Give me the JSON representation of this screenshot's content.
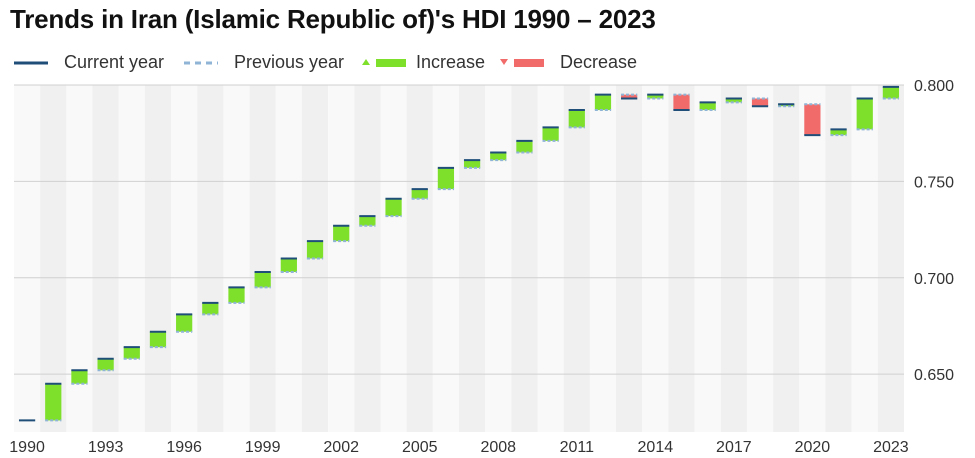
{
  "title": "Trends in Iran (Islamic Republic of)'s HDI 1990 – 2023",
  "legend": {
    "current": "Current year",
    "previous": "Previous year",
    "increase": "Increase",
    "decrease": "Decrease"
  },
  "colors": {
    "current": "#1f4e79",
    "previous": "#8fb4d6",
    "increase": "#7ee02b",
    "decrease": "#f26b6b",
    "band_light": "#f9f9f9",
    "band_dark": "#f0f0f0",
    "grid": "#d0d0d0"
  },
  "chart_data": {
    "type": "bar",
    "subtype": "waterfall",
    "title": "Trends in Iran (Islamic Republic of)'s HDI 1990 – 2023",
    "xlabel": "",
    "ylabel": "",
    "ylim": [
      0.62,
      0.8
    ],
    "y_ticks": [
      0.65,
      0.7,
      0.75,
      0.8
    ],
    "y_tick_labels": [
      "0.650",
      "0.700",
      "0.750",
      "0.800"
    ],
    "y_axis_side": "right",
    "x_tick_labels": [
      "1990",
      "1993",
      "1996",
      "1999",
      "2002",
      "2005",
      "2008",
      "2011",
      "2014",
      "2017",
      "2020",
      "2023"
    ],
    "grid": true,
    "legend_position": "top-left",
    "years": [
      1990,
      1991,
      1992,
      1993,
      1994,
      1995,
      1996,
      1997,
      1998,
      1999,
      2000,
      2001,
      2002,
      2003,
      2004,
      2005,
      2006,
      2007,
      2008,
      2009,
      2010,
      2011,
      2012,
      2013,
      2014,
      2015,
      2016,
      2017,
      2018,
      2019,
      2020,
      2021,
      2022,
      2023
    ],
    "values": [
      0.626,
      0.645,
      0.652,
      0.658,
      0.664,
      0.672,
      0.681,
      0.687,
      0.695,
      0.703,
      0.71,
      0.719,
      0.727,
      0.732,
      0.741,
      0.746,
      0.757,
      0.761,
      0.765,
      0.771,
      0.778,
      0.787,
      0.795,
      0.793,
      0.795,
      0.787,
      0.791,
      0.793,
      0.789,
      0.79,
      0.774,
      0.777,
      0.793,
      0.799
    ]
  }
}
